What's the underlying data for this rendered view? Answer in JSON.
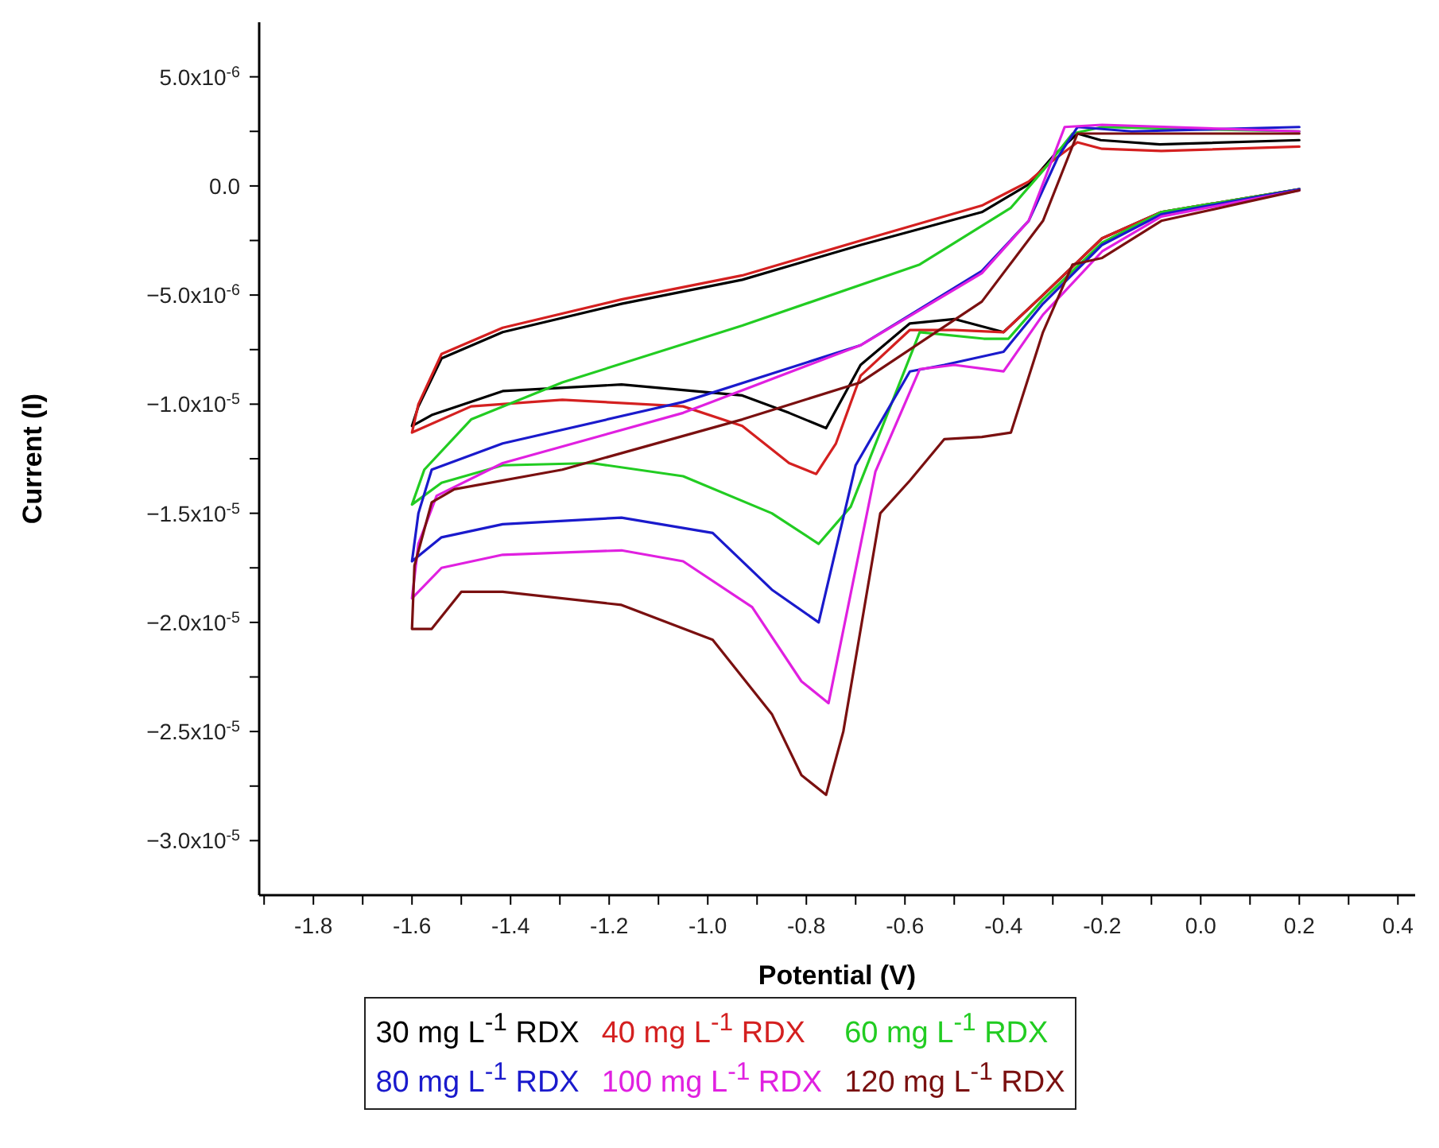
{
  "chart_data": {
    "type": "line",
    "xlabel": "Potential (V)",
    "ylabel": "Current (I)",
    "xlim": [
      -1.91,
      0.435
    ],
    "ylim": [
      -3.25e-05,
      7.5e-06
    ],
    "xticks": [
      {
        "value": -1.9,
        "label": null
      },
      -1.8,
      {
        "value": -1.7,
        "label": null
      },
      -1.6,
      {
        "value": -1.5,
        "label": null
      },
      -1.4,
      {
        "value": -1.3,
        "label": null
      },
      -1.2,
      {
        "value": -1.1,
        "label": null
      },
      {
        "value": -1.0,
        "label": "-1.0"
      },
      {
        "value": -0.9,
        "label": null
      },
      -0.8,
      {
        "value": -0.7,
        "label": null
      },
      -0.6,
      {
        "value": -0.5,
        "label": null
      },
      -0.4,
      {
        "value": -0.3,
        "label": null
      },
      -0.2,
      {
        "value": -0.1,
        "label": null
      },
      {
        "value": 0,
        "label": "0.0"
      },
      {
        "value": 0.1,
        "label": null
      },
      0.2,
      {
        "value": 0.3,
        "label": null
      },
      0.4
    ],
    "yticks": [
      {
        "value": 5e-06,
        "label": "5.0x10$^{-6}$"
      },
      {
        "value": 2.5e-06,
        "label": null
      },
      {
        "value": 0,
        "label": "0.0"
      },
      {
        "value": -2.5e-06,
        "label": null
      },
      {
        "value": -5e-06,
        "label": "−5.0x10$^{-6}$"
      },
      {
        "value": -7.5e-06,
        "label": null
      },
      {
        "value": -1e-05,
        "label": "−1.0x10$^{-5}$"
      },
      {
        "value": -1.25e-05,
        "label": null
      },
      {
        "value": -1.5e-05,
        "label": "−1.5x10$^{-5}$"
      },
      {
        "value": -1.75e-05,
        "label": null
      },
      {
        "value": -2e-05,
        "label": "−2.0x10$^{-5}$"
      },
      {
        "value": -2.25e-05,
        "label": null
      },
      {
        "value": -2.5e-05,
        "label": "−2.5x10$^{-5}$"
      },
      {
        "value": -2.75e-05,
        "label": null
      },
      {
        "value": -3e-05,
        "label": "−3.0x10$^{-5}$"
      }
    ],
    "grid": false,
    "legend": "bottom",
    "marker": "none",
    "line_style": "solid",
    "series": [
      {
        "name": "30 mg L$^{-1}$ RDX",
        "color": "#000000",
        "x": [
          0.2,
          -0.08,
          -0.2,
          -0.32,
          -0.4,
          -0.5,
          -0.59,
          -0.69,
          -0.76,
          -0.835,
          -0.93,
          -1.175,
          -1.416,
          -1.56,
          -1.6,
          -1.587,
          -1.54,
          -1.416,
          -1.175,
          -0.93,
          -0.689,
          -0.444,
          -0.349,
          -0.298,
          -0.25,
          -0.203,
          -0.083,
          0.2
        ],
        "values": [
          -1.5e-07,
          -1.2e-06,
          -2.4e-06,
          -5e-06,
          -6.7e-06,
          -6.1e-06,
          -6.3e-06,
          -8.2e-06,
          -1.11e-05,
          -1.04e-05,
          -9.6e-06,
          -9.1e-06,
          -9.4e-06,
          -1.05e-05,
          -1.1e-05,
          -1.01e-05,
          -7.9e-06,
          -6.7e-06,
          -5.4e-06,
          -4.3e-06,
          -2.7e-06,
          -1.2e-06,
          7e-08,
          1.4e-06,
          2.4e-06,
          2.1e-06,
          1.9e-06,
          2.1e-06
        ]
      },
      {
        "name": "40 mg L$^{-1}$ RDX",
        "color": "#d42020",
        "x": [
          0.2,
          -0.08,
          -0.2,
          -0.32,
          -0.4,
          -0.5,
          -0.59,
          -0.69,
          -0.74,
          -0.78,
          -0.835,
          -0.93,
          -1.05,
          -1.295,
          -1.48,
          -1.6,
          -1.587,
          -1.54,
          -1.416,
          -1.175,
          -0.93,
          -0.689,
          -0.444,
          -0.349,
          -0.298,
          -0.25,
          -0.2,
          -0.08,
          0.2
        ],
        "values": [
          -1.5e-07,
          -1.2e-06,
          -2.4e-06,
          -5e-06,
          -6.7e-06,
          -6.6e-06,
          -6.6e-06,
          -8.7e-06,
          -1.18e-05,
          -1.32e-05,
          -1.27e-05,
          -1.1e-05,
          -1.01e-05,
          -9.8e-06,
          -1.01e-05,
          -1.13e-05,
          -1e-05,
          -7.7e-06,
          -6.5e-06,
          -5.2e-06,
          -4.1e-06,
          -2.5e-06,
          -9e-07,
          2e-07,
          1.2e-06,
          2e-06,
          1.7e-06,
          1.6e-06,
          1.8e-06
        ]
      },
      {
        "name": "60 mg L$^{-1}$ RDX",
        "color": "#22cc22",
        "x": [
          0.2,
          -0.08,
          -0.2,
          -0.32,
          -0.39,
          -0.44,
          -0.57,
          -0.71,
          -0.775,
          -0.87,
          -1.05,
          -1.235,
          -1.416,
          -1.54,
          -1.6,
          -1.575,
          -1.48,
          -1.295,
          -0.93,
          -0.57,
          -0.385,
          -0.32,
          -0.26,
          -0.2,
          0.2
        ],
        "values": [
          -1.5e-07,
          -1.2e-06,
          -2.6e-06,
          -5.2e-06,
          -7e-06,
          -7e-06,
          -6.7e-06,
          -1.47e-05,
          -1.64e-05,
          -1.5e-05,
          -1.33e-05,
          -1.27e-05,
          -1.28e-05,
          -1.36e-05,
          -1.46e-05,
          -1.3e-05,
          -1.07e-05,
          -9e-06,
          -6.4e-06,
          -3.6e-06,
          -1e-06,
          7e-07,
          2.4e-06,
          2.7e-06,
          2.5e-06
        ]
      },
      {
        "name": "80 mg L$^{-1}$ RDX",
        "color": "#1a1acc",
        "x": [
          0.2,
          -0.08,
          -0.2,
          -0.32,
          -0.4,
          -0.52,
          -0.59,
          -0.7,
          -0.775,
          -0.87,
          -0.99,
          -1.175,
          -1.416,
          -1.54,
          -1.6,
          -1.587,
          -1.56,
          -1.416,
          -1.05,
          -0.69,
          -0.444,
          -0.349,
          -0.29,
          -0.25,
          -0.14,
          0.2
        ],
        "values": [
          -1.5e-07,
          -1.3e-06,
          -2.7e-06,
          -5.4e-06,
          -7.6e-06,
          -8.2e-06,
          -8.5e-06,
          -1.28e-05,
          -2e-05,
          -1.85e-05,
          -1.59e-05,
          -1.52e-05,
          -1.55e-05,
          -1.61e-05,
          -1.72e-05,
          -1.5e-05,
          -1.3e-05,
          -1.18e-05,
          -9.9e-06,
          -7.3e-06,
          -3.9e-06,
          -1.6e-06,
          1.3e-06,
          2.7e-06,
          2.5e-06,
          2.7e-06
        ]
      },
      {
        "name": "100 mg L$^{-1}$ RDX",
        "color": "#e020e0",
        "x": [
          0.2,
          -0.08,
          -0.2,
          -0.32,
          -0.4,
          -0.5,
          -0.57,
          -0.66,
          -0.755,
          -0.81,
          -0.91,
          -1.05,
          -1.175,
          -1.416,
          -1.54,
          -1.6,
          -1.587,
          -1.55,
          -1.416,
          -1.05,
          -0.69,
          -0.444,
          -0.349,
          -0.276,
          -0.2,
          0.2
        ],
        "values": [
          -2e-07,
          -1.4e-06,
          -3e-06,
          -5.9e-06,
          -8.5e-06,
          -8.2e-06,
          -8.4e-06,
          -1.31e-05,
          -2.37e-05,
          -2.27e-05,
          -1.93e-05,
          -1.72e-05,
          -1.67e-05,
          -1.69e-05,
          -1.75e-05,
          -1.89e-05,
          -1.64e-05,
          -1.42e-05,
          -1.27e-05,
          -1.04e-05,
          -7.3e-06,
          -4e-06,
          -1.6e-06,
          2.7e-06,
          2.8e-06,
          2.5e-06
        ]
      },
      {
        "name": "120 mg L$^{-1}$ RDX",
        "color": "#7a1010",
        "x": [
          0.2,
          -0.08,
          -0.2,
          -0.26,
          -0.32,
          -0.385,
          -0.444,
          -0.52,
          -0.59,
          -0.65,
          -0.725,
          -0.76,
          -0.81,
          -0.87,
          -0.99,
          -1.175,
          -1.416,
          -1.5,
          -1.56,
          -1.6,
          -1.595,
          -1.56,
          -1.514,
          -1.295,
          -0.93,
          -0.69,
          -0.444,
          -0.32,
          -0.25,
          0.2
        ],
        "values": [
          -2e-07,
          -1.6e-06,
          -3.3e-06,
          -3.6e-06,
          -6.7e-06,
          -1.13e-05,
          -1.15e-05,
          -1.16e-05,
          -1.35e-05,
          -1.5e-05,
          -2.5e-05,
          -2.79e-05,
          -2.7e-05,
          -2.42e-05,
          -2.08e-05,
          -1.92e-05,
          -1.86e-05,
          -1.86e-05,
          -2.03e-05,
          -2.03e-05,
          -1.74e-05,
          -1.45e-05,
          -1.39e-05,
          -1.3e-05,
          -1.07e-05,
          -9e-06,
          -5.3e-06,
          -1.6e-06,
          2.4e-06,
          2.4e-06
        ]
      }
    ]
  }
}
